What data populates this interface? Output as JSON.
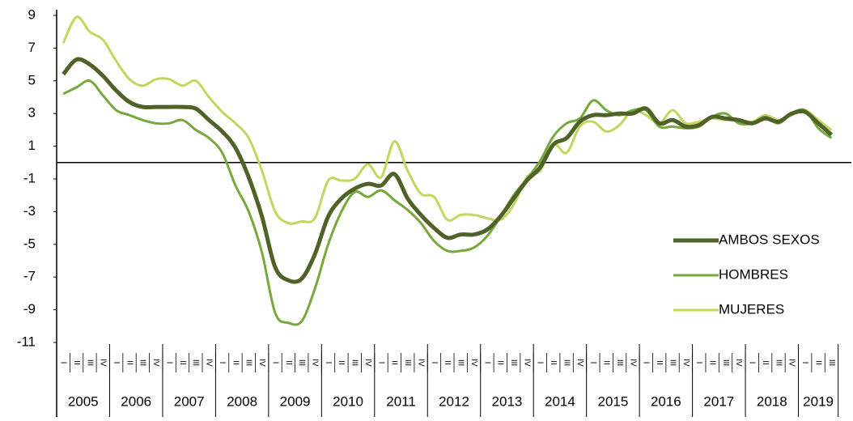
{
  "chart_data": {
    "type": "line",
    "categories": [
      "I",
      "II",
      "III",
      "IV",
      "I",
      "II",
      "III",
      "IV",
      "I",
      "II",
      "III",
      "IV",
      "I",
      "II",
      "III",
      "IV",
      "I",
      "II",
      "III",
      "IV",
      "I",
      "II",
      "III",
      "IV",
      "I",
      "II",
      "III",
      "IV",
      "I",
      "II",
      "III",
      "IV",
      "I",
      "II",
      "III",
      "IV",
      "I",
      "II",
      "III",
      "IV",
      "I",
      "II",
      "III",
      "IV",
      "I",
      "II",
      "III",
      "IV",
      "I",
      "II",
      "III",
      "IV",
      "I",
      "II",
      "III",
      "IV",
      "I",
      "II",
      "III"
    ],
    "years": [
      "2005",
      "2006",
      "2007",
      "2008",
      "2009",
      "2010",
      "2011",
      "2012",
      "2013",
      "2014",
      "2015",
      "2016",
      "2017",
      "2018",
      "2019"
    ],
    "series": [
      {
        "name": "AMBOS SEXOS",
        "color": "#4f6228",
        "values": [
          5.4,
          6.3,
          6.0,
          5.3,
          4.4,
          3.7,
          3.4,
          3.4,
          3.4,
          3.4,
          3.3,
          2.6,
          1.9,
          0.9,
          -0.9,
          -3.3,
          -6.4,
          -7.2,
          -7.1,
          -5.6,
          -3.3,
          -2.2,
          -1.6,
          -1.3,
          -1.4,
          -0.7,
          -2.2,
          -3.2,
          -4.0,
          -4.6,
          -4.4,
          -4.4,
          -4.1,
          -3.3,
          -2.2,
          -1.1,
          -0.3,
          1.1,
          1.5,
          2.5,
          2.9,
          2.9,
          3.0,
          3.0,
          3.3,
          2.4,
          2.6,
          2.2,
          2.3,
          2.8,
          2.7,
          2.6,
          2.4,
          2.7,
          2.5,
          3.0,
          3.1,
          2.4,
          1.7
        ]
      },
      {
        "name": "HOMBRES",
        "color": "#77a83c",
        "values": [
          4.2,
          4.6,
          5.0,
          4.1,
          3.2,
          2.9,
          2.6,
          2.4,
          2.4,
          2.6,
          2.0,
          1.5,
          0.6,
          -1.4,
          -3.0,
          -5.5,
          -9.2,
          -9.8,
          -9.7,
          -7.7,
          -5.0,
          -3.0,
          -1.8,
          -2.1,
          -1.7,
          -2.3,
          -2.9,
          -3.7,
          -4.8,
          -5.4,
          -5.4,
          -5.2,
          -4.5,
          -3.3,
          -2.0,
          -1.0,
          0.1,
          1.6,
          2.4,
          2.7,
          3.8,
          3.2,
          2.9,
          3.2,
          3.2,
          2.2,
          2.2,
          2.1,
          2.2,
          2.8,
          3.0,
          2.4,
          2.4,
          2.8,
          2.4,
          3.0,
          3.2,
          2.1,
          1.5
        ]
      },
      {
        "name": "MUJERES",
        "color": "#c4d65e",
        "values": [
          7.3,
          8.9,
          8.0,
          7.5,
          6.2,
          5.1,
          4.7,
          5.1,
          5.1,
          4.7,
          5.0,
          4.0,
          3.1,
          2.4,
          1.5,
          -0.5,
          -3.0,
          -3.7,
          -3.6,
          -3.4,
          -1.1,
          -1.1,
          -1.0,
          -0.1,
          -0.9,
          1.3,
          -0.5,
          -1.9,
          -2.1,
          -3.5,
          -3.2,
          -3.2,
          -3.4,
          -3.5,
          -2.6,
          -0.9,
          -0.5,
          1.1,
          0.6,
          2.2,
          2.5,
          1.9,
          2.3,
          3.2,
          2.9,
          2.4,
          3.2,
          2.4,
          2.5,
          2.7,
          2.6,
          2.6,
          2.5,
          2.9,
          2.6,
          2.9,
          3.2,
          2.6,
          2.0
        ]
      }
    ],
    "ylim": [
      -11,
      9
    ],
    "yticks": [
      9,
      7,
      5,
      3,
      1,
      -1,
      -3,
      -5,
      -7,
      -9,
      -11
    ],
    "negative_tick_color": "#ff0000",
    "zero_line": true,
    "legend": "right"
  }
}
